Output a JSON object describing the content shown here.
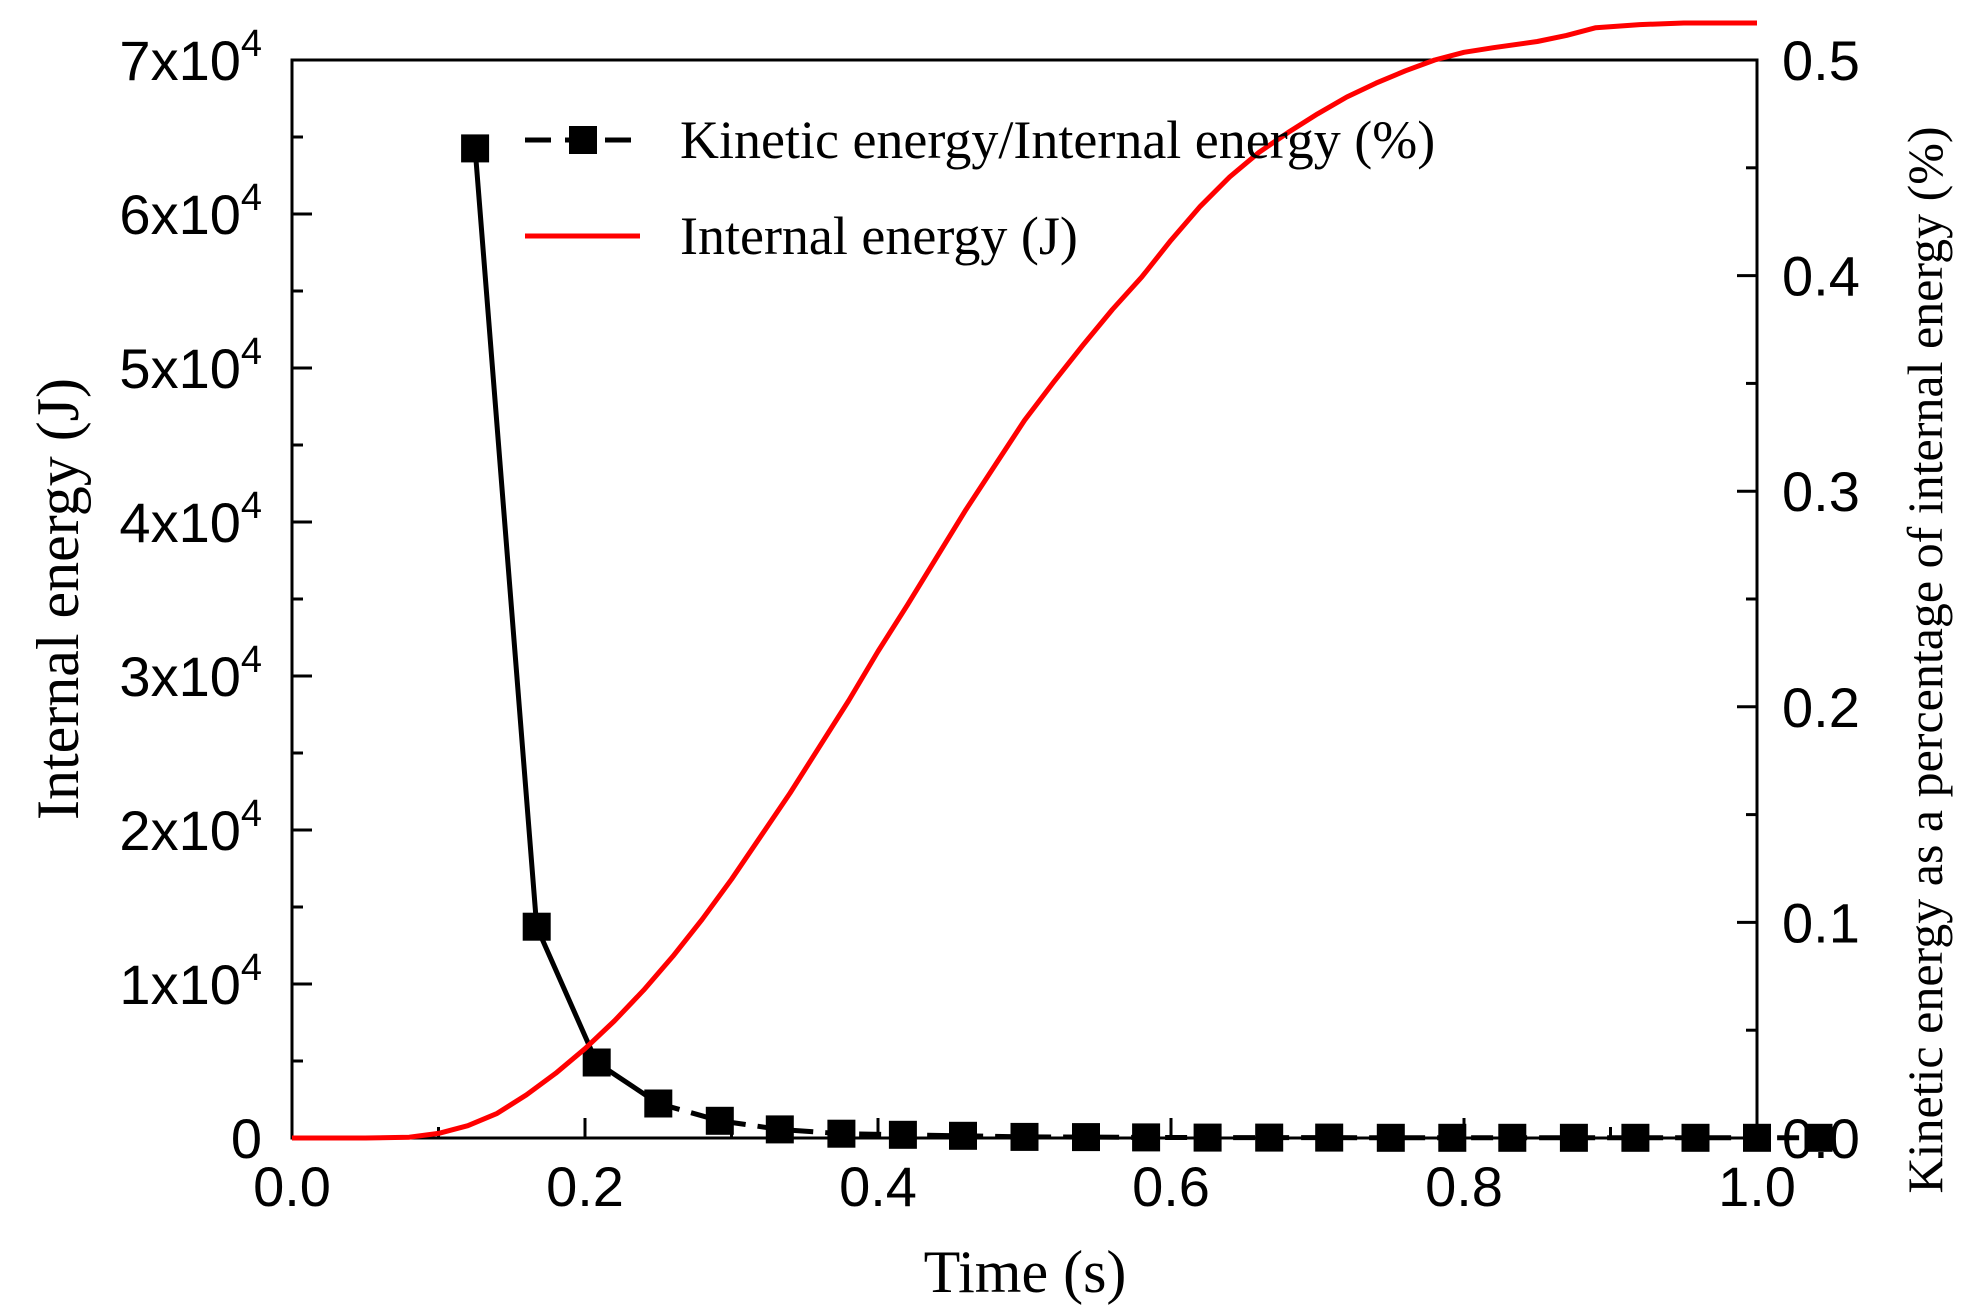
{
  "chart_data": {
    "type": "line",
    "title": "",
    "xlabel": "Time (s)",
    "ylabel_left": "Internal energy (J)",
    "ylabel_right": "Kinetic energy as a percentage of internal energy (%)",
    "xlim": [
      0.0,
      1.0
    ],
    "ylim_left": [
      0,
      70000
    ],
    "ylim_right": [
      0.0,
      0.5
    ],
    "x_ticks": [
      "0.0",
      "0.2",
      "0.4",
      "0.6",
      "0.8",
      "1.0"
    ],
    "y_left_ticks": [
      {
        "value": 0,
        "base": "0",
        "exp": ""
      },
      {
        "value": 10000,
        "base": "1x10",
        "exp": "4"
      },
      {
        "value": 20000,
        "base": "2x10",
        "exp": "4"
      },
      {
        "value": 30000,
        "base": "3x10",
        "exp": "4"
      },
      {
        "value": 40000,
        "base": "4x10",
        "exp": "4"
      },
      {
        "value": 50000,
        "base": "5x10",
        "exp": "4"
      },
      {
        "value": 60000,
        "base": "6x10",
        "exp": "4"
      },
      {
        "value": 70000,
        "base": "7x10",
        "exp": "4"
      }
    ],
    "y_right_ticks": [
      "0.0",
      "0.1",
      "0.2",
      "0.3",
      "0.4",
      "0.5"
    ],
    "legend_position": "top-left",
    "series": [
      {
        "name": "Kinetic energy/Internal energy (%)",
        "axis": "right",
        "color": "#000000",
        "marker": "square",
        "x": [
          0.125,
          0.167,
          0.208,
          0.25,
          0.292,
          0.333,
          0.375,
          0.417,
          0.458,
          0.5,
          0.542,
          0.583,
          0.625,
          0.667,
          0.708,
          0.75,
          0.792,
          0.833,
          0.875,
          0.917,
          0.958,
          1.0,
          1.042
        ],
        "values": [
          0.459,
          0.098,
          0.035,
          0.016,
          0.008,
          0.004,
          0.002,
          0.0015,
          0.001,
          0.0005,
          0.0004,
          0.0003,
          0.0002,
          0.0002,
          0.0002,
          0.0001,
          0.0001,
          0.0001,
          0.0001,
          0.0001,
          0.0001,
          0.0001,
          0.0001
        ]
      },
      {
        "name": "Internal energy (J)",
        "axis": "left",
        "color": "#ff0000",
        "marker": "none",
        "x": [
          0.0,
          0.05,
          0.08,
          0.1,
          0.12,
          0.14,
          0.16,
          0.18,
          0.2,
          0.22,
          0.24,
          0.26,
          0.28,
          0.3,
          0.32,
          0.34,
          0.36,
          0.38,
          0.4,
          0.42,
          0.44,
          0.46,
          0.48,
          0.5,
          0.52,
          0.54,
          0.56,
          0.58,
          0.6,
          0.62,
          0.64,
          0.66,
          0.68,
          0.7,
          0.72,
          0.74,
          0.76,
          0.78,
          0.8,
          0.82,
          0.85,
          0.87,
          0.89,
          0.92,
          0.95,
          1.0
        ],
        "values": [
          0,
          0,
          50,
          300,
          800,
          1600,
          2800,
          4200,
          5800,
          7600,
          9600,
          11800,
          14200,
          16800,
          19600,
          22400,
          25400,
          28400,
          31600,
          34600,
          37700,
          40800,
          43700,
          46600,
          49100,
          51500,
          53800,
          55900,
          58300,
          60500,
          62400,
          64000,
          65300,
          66500,
          67600,
          68500,
          69300,
          70000,
          70500,
          70800,
          71200,
          71600,
          72100,
          72300,
          72400,
          72400
        ]
      }
    ]
  }
}
